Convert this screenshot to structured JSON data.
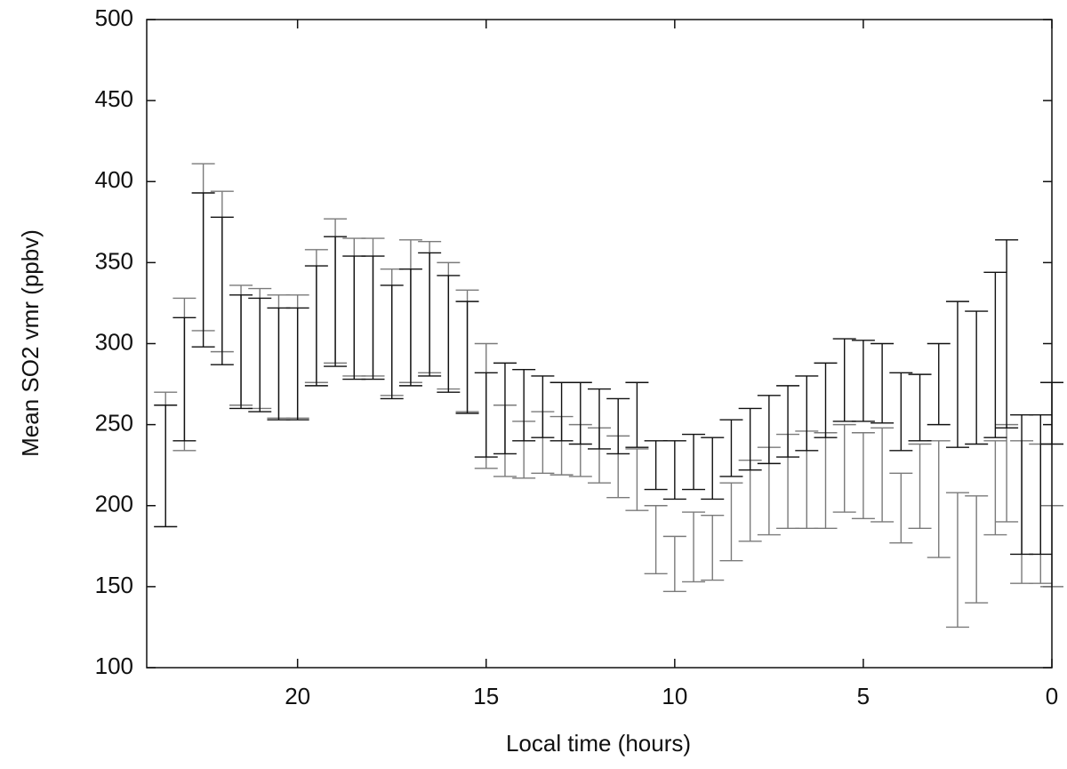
{
  "chart_data": {
    "type": "errorbar",
    "xlabel": "Local time (hours)",
    "ylabel": "Mean SO2 vmr (ppbv)",
    "xlim": [
      24,
      0
    ],
    "xticks": [
      20,
      15,
      10,
      5,
      0
    ],
    "ylim": [
      100,
      500
    ],
    "yticks": [
      100,
      150,
      200,
      250,
      300,
      350,
      400,
      450,
      500
    ],
    "series": [
      {
        "color": "#7a7a7a",
        "x": [
          23.5,
          23,
          22.5,
          22,
          21.5,
          21,
          20.5,
          20,
          19.5,
          19,
          18.5,
          18,
          17.5,
          17,
          16.5,
          16,
          15.5,
          15,
          14.5,
          14,
          13.5,
          13,
          12.5,
          12,
          11.5,
          11,
          10.5,
          10,
          9.5,
          9,
          8.5,
          8,
          7.5,
          7,
          6.5,
          6,
          5.5,
          5,
          4.5,
          4,
          3.5,
          3,
          2.5,
          2,
          1.5,
          1.2,
          0.8,
          0.3,
          0
        ],
        "values": [
          228.5,
          281,
          359.5,
          344.5,
          299,
          297,
          292,
          292,
          317,
          332.5,
          322.5,
          322.5,
          307,
          320,
          322.5,
          311,
          295.5,
          261.5,
          240,
          234.5,
          239,
          237,
          234,
          231,
          224,
          216,
          179,
          164,
          174.5,
          174,
          190,
          203,
          209,
          215,
          216,
          215.5,
          223,
          218.5,
          219,
          198.5,
          212,
          204,
          166.5,
          173,
          211,
          220,
          196,
          195,
          175
        ],
        "errors": [
          41.5,
          47,
          51.5,
          49.5,
          37,
          37,
          38,
          38,
          41,
          44.5,
          42.5,
          42.5,
          39,
          44,
          40.5,
          39,
          37.5,
          38.5,
          22,
          17.5,
          19,
          18,
          16,
          17,
          19,
          19,
          21,
          17,
          21.5,
          20,
          24,
          25,
          27,
          29,
          30,
          29.5,
          27,
          26.5,
          29,
          21.5,
          26,
          36,
          41.5,
          33,
          29,
          30,
          44,
          43,
          25
        ]
      },
      {
        "color": "#111111",
        "x": [
          23.5,
          23,
          22.5,
          22,
          21.5,
          21,
          20.5,
          20,
          19.5,
          19,
          18.5,
          18,
          17.5,
          17,
          16.5,
          16,
          15.5,
          15,
          14.5,
          14,
          13.5,
          13,
          12.5,
          12,
          11.5,
          11,
          10.5,
          10,
          9.5,
          9,
          8.5,
          8,
          7.5,
          7,
          6.5,
          6,
          5.5,
          5,
          4.5,
          4,
          3.5,
          3,
          2.5,
          2,
          1.5,
          1.2,
          0.8,
          0.3,
          0
        ],
        "values": [
          224.5,
          278,
          345.5,
          332.5,
          295,
          293,
          287.5,
          287.5,
          311,
          326,
          316,
          316,
          301,
          310,
          318,
          306,
          291.5,
          256,
          260,
          262,
          261,
          258,
          257,
          253.5,
          249,
          256,
          225,
          222,
          227,
          223,
          235.5,
          241,
          247,
          252,
          257,
          265,
          277.5,
          277,
          275.5,
          258,
          260.5,
          275,
          281,
          279,
          293,
          306,
          213,
          213,
          257
        ],
        "errors": [
          37.5,
          38,
          47.5,
          45.5,
          35,
          35,
          34.5,
          34.5,
          37,
          40,
          38,
          38,
          35,
          36,
          38,
          36,
          34.5,
          26,
          28,
          22,
          19,
          18,
          19,
          18.5,
          17,
          20,
          15,
          18,
          17,
          19,
          17.5,
          19,
          21,
          22,
          23,
          23,
          25.5,
          25,
          24.5,
          24,
          20.5,
          25,
          45,
          41,
          51,
          58,
          43,
          43,
          19
        ]
      }
    ]
  }
}
